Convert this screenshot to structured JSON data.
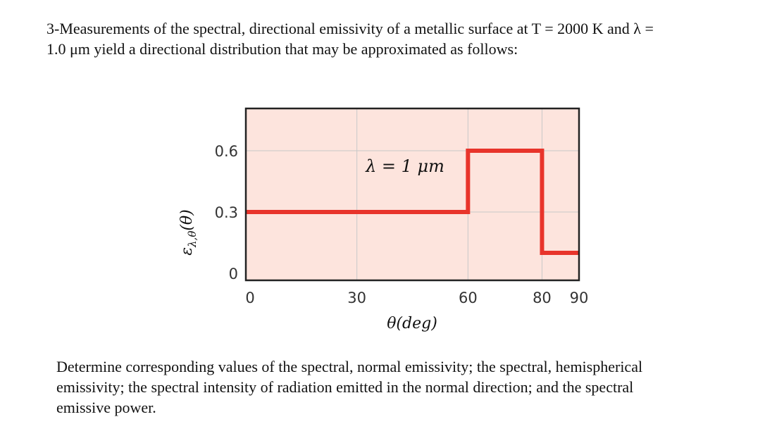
{
  "problem": {
    "line1": "3-Measurements of the spectral, directional emissivity of a metallic surface at T = 2000 K and λ =",
    "line2": "1.0 μm yield a directional distribution that may be approximated as follows:"
  },
  "question": {
    "line1": "Determine corresponding values of the spectral, normal emissivity; the spectral, hemispherical",
    "line2": "emissivity; the spectral intensity of radiation emitted in the normal direction; and the spectral",
    "line3": "emissive power."
  },
  "chart_data": {
    "type": "line",
    "step": true,
    "xlabel": "θ(deg)",
    "ylabel": "ε_{λ,θ}(θ)",
    "annotation": "λ = 1 μm",
    "xlim": [
      0,
      90
    ],
    "ylim": [
      0,
      0.6
    ],
    "x_ticks": [
      0,
      30,
      60,
      80,
      90
    ],
    "y_ticks": [
      0,
      0.3,
      0.6
    ],
    "x_tick_labels": [
      "0",
      "30",
      "60",
      "80",
      "90"
    ],
    "y_tick_labels": [
      "0",
      "0.3",
      "0.6"
    ],
    "grid": true,
    "series": [
      {
        "points": [
          [
            0,
            0.3
          ],
          [
            60,
            0.3
          ],
          [
            60,
            0.6
          ],
          [
            80,
            0.6
          ],
          [
            80,
            0.1
          ],
          [
            90,
            0.1
          ]
        ],
        "color": "#e8342b"
      }
    ],
    "plot_background": "#fde4dd",
    "grid_color": "#c8c8c8",
    "frame_color": "#222222"
  }
}
